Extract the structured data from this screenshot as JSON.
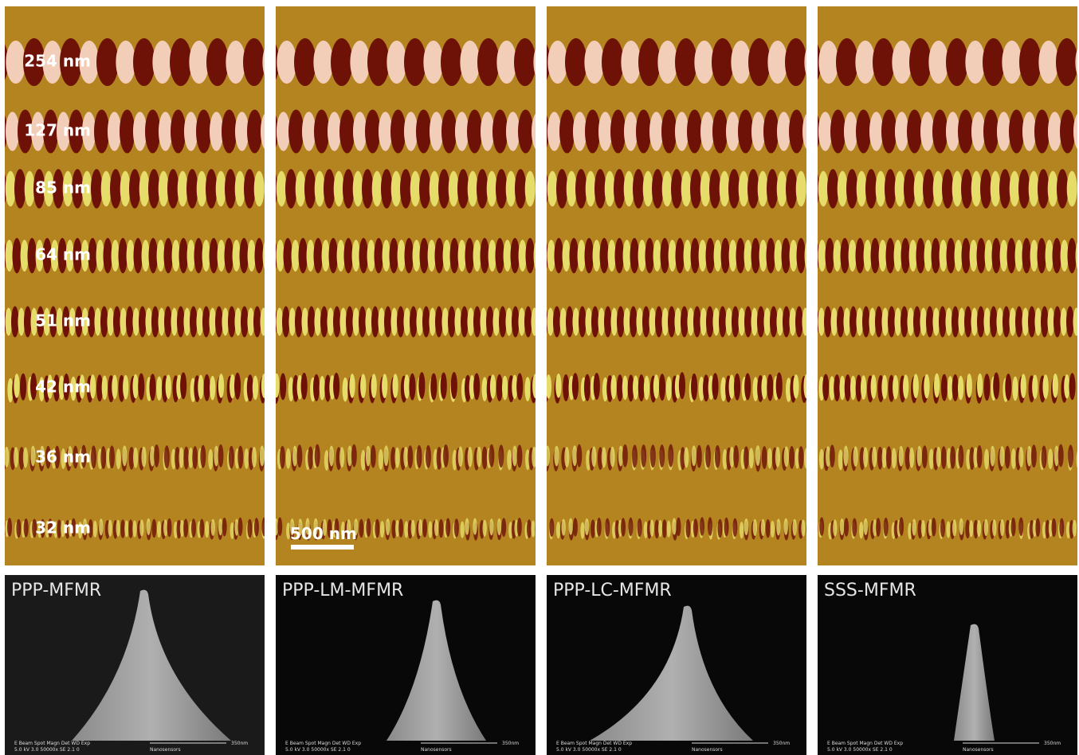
{
  "figure": {
    "rows": [
      "254 nm",
      "127 nm",
      "85 nm",
      "64 nm",
      "51 nm",
      "42 nm",
      "36 nm",
      "32 nm"
    ],
    "scale_bar": "500 nm",
    "panels": [
      "PPP-MFMR",
      "PPP-LM-MFMR",
      "PPP-LC-MFMR",
      "SSS-MFMR"
    ],
    "sem_footer": {
      "line1": "E Beam  Spot  Magn   Det  WD  Exp",
      "line2": "5.0 kV  3.0  50000x  SE   2.1  0",
      "scale": "350nm",
      "maker": "Nanosensors"
    }
  }
}
